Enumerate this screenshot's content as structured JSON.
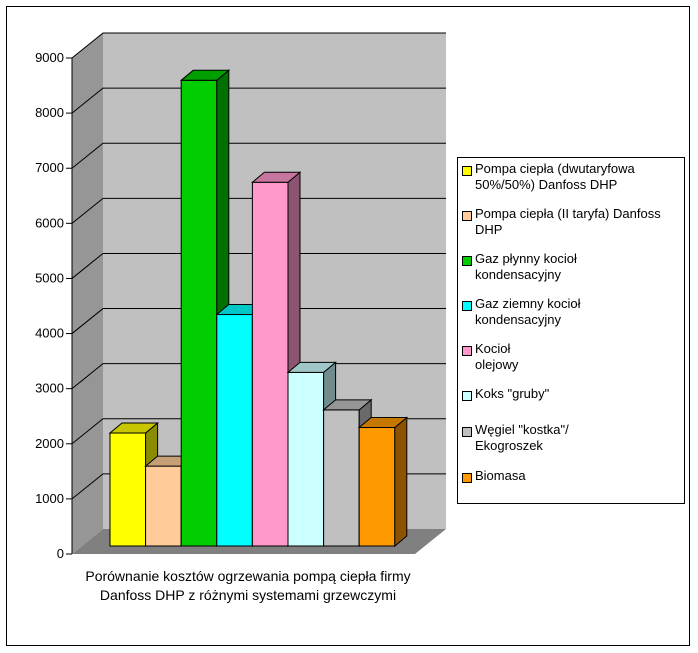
{
  "chart_data": {
    "type": "bar",
    "xlabel": "Porównanie kosztów ogrzewania pompą ciepła firmy Danfoss DHP z różnymi systemami grzewczymi",
    "ylim": [
      0,
      9000
    ],
    "yticks": [
      "0",
      "1000",
      "2000",
      "3000",
      "4000",
      "5000",
      "6000",
      "7000",
      "8000",
      "9000"
    ],
    "grid": true,
    "legend_position": "right",
    "series": [
      {
        "name": "Pompa ciepła (dwutaryfowa 50%/50%) Danfoss DHP",
        "value": 2050,
        "color": "#ffff00"
      },
      {
        "name": "Pompa ciepła (II taryfa) Danfoss DHP",
        "value": 1450,
        "color": "#ffcc99"
      },
      {
        "name": "Gaz płynny kocioł kondensacyjny",
        "value": 8450,
        "color": "#00cc00"
      },
      {
        "name": "Gaz ziemny kocioł kondensacyjny",
        "value": 4200,
        "color": "#00ffff"
      },
      {
        "name": "Kocioł olejowy",
        "value": 6600,
        "color": "#ff99cc"
      },
      {
        "name": "Koks \"gruby\"",
        "value": 3150,
        "color": "#ccffff"
      },
      {
        "name": "Węgiel \"kostka\"/ Ekogroszek",
        "value": 2470,
        "color": "#c0c0c0"
      },
      {
        "name": "Biomasa",
        "value": 2150,
        "color": "#ff9900"
      }
    ]
  },
  "legend": {
    "items": [
      {
        "label": "Pompa ciepła (dwutaryfowa\n50%/50%) Danfoss DHP",
        "color": "#ffff00"
      },
      {
        "label": "Pompa ciepła (II taryfa) Danfoss\nDHP",
        "color": "#ffcc99"
      },
      {
        "label": "Gaz płynny kocioł\nkondensacyjny",
        "color": "#00cc00"
      },
      {
        "label": "Gaz ziemny kocioł\nkondensacyjny",
        "color": "#00ffff"
      },
      {
        "label": "Kocioł\nolejowy",
        "color": "#ff99cc"
      },
      {
        "label": " Koks \"gruby\"",
        "color": "#ccffff"
      },
      {
        "label": "Węgiel \"kostka\"/\nEkogroszek",
        "color": "#c0c0c0"
      },
      {
        "label": "Biomasa",
        "color": "#ff9900"
      }
    ]
  }
}
